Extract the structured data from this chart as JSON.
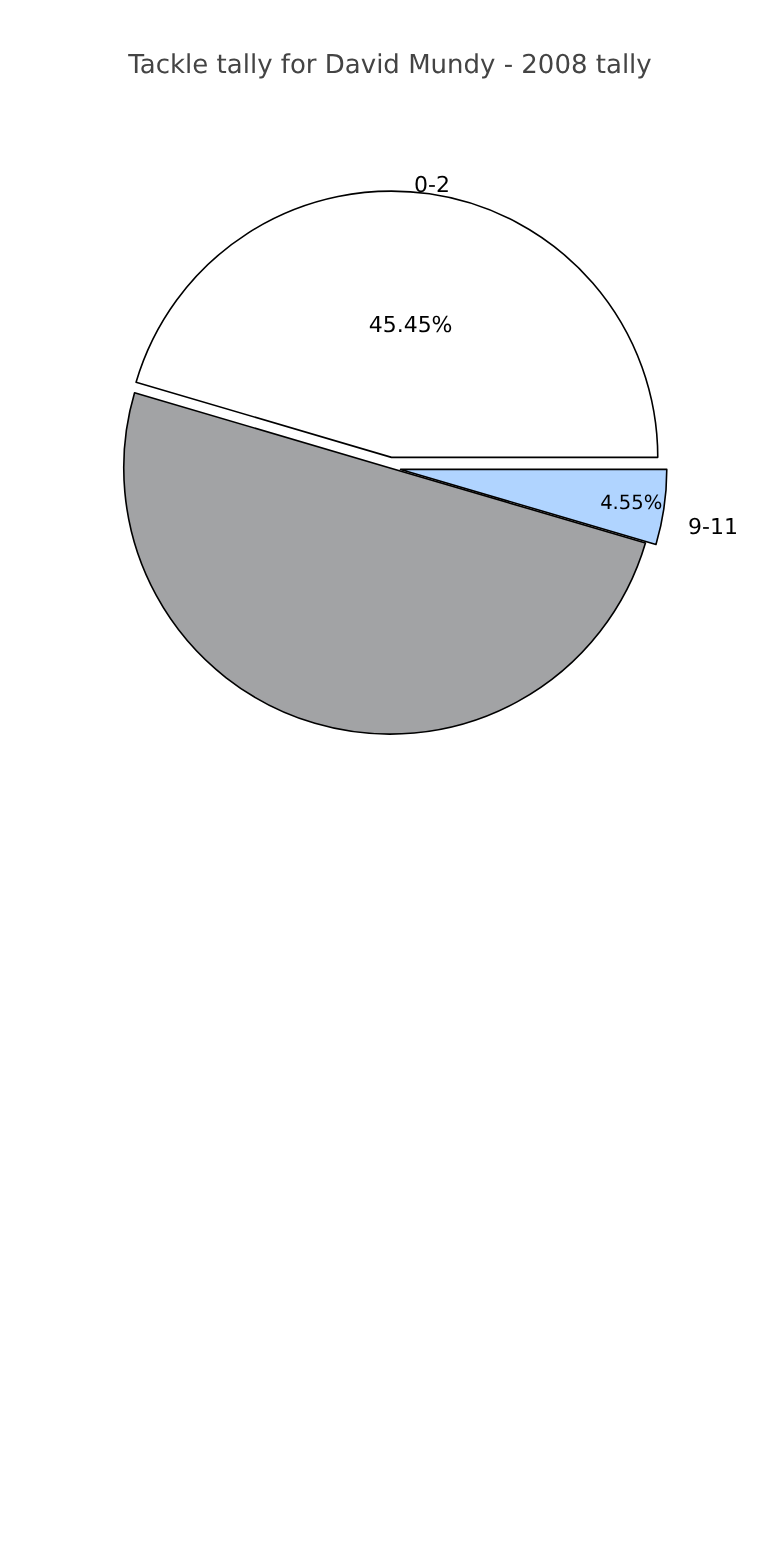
{
  "chart_data": {
    "type": "pie",
    "title": "Tackle tally for David Mundy - 2008 tally",
    "categories": [
      "0-2",
      null,
      "9-11"
    ],
    "values": [
      45.45,
      50,
      4.55
    ],
    "value_labels": [
      "45.45%",
      null,
      "4.55%"
    ],
    "colors": [
      "#ffffff",
      "#a2a3a5",
      "#b0d4ff"
    ],
    "legend": false
  }
}
